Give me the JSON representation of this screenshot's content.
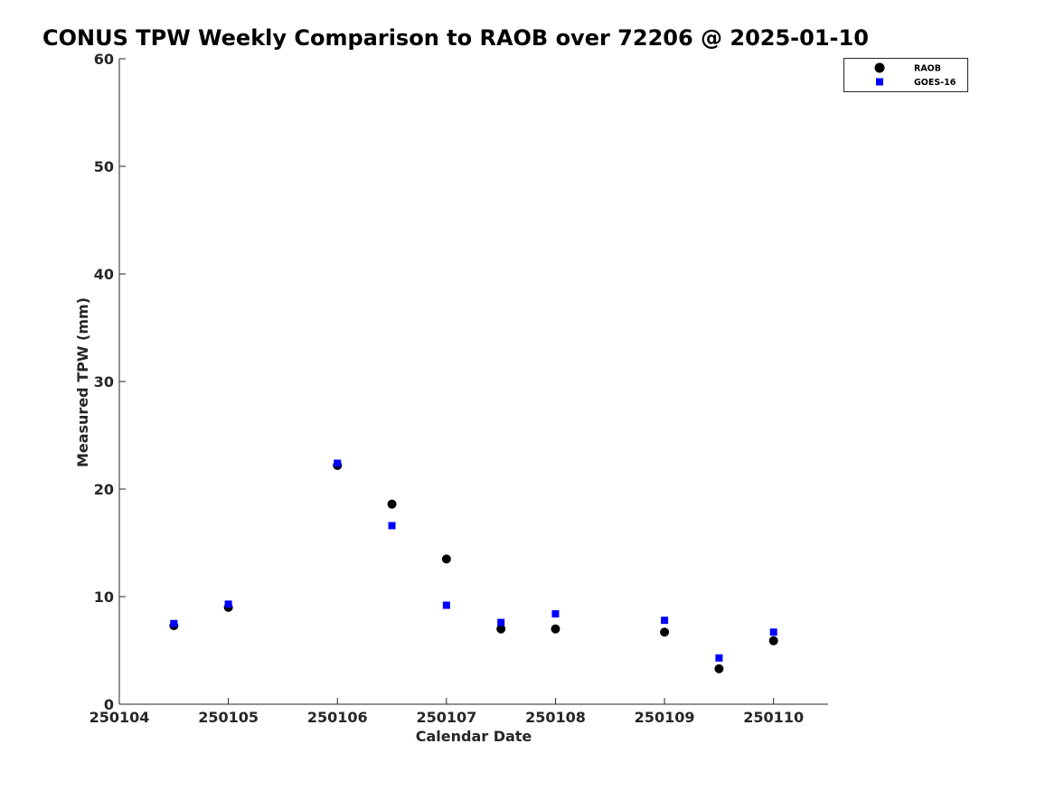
{
  "chart_data": {
    "type": "scatter",
    "title": "CONUS TPW Weekly Comparison to RAOB over 72206 @ 2025-01-10",
    "xlabel": "Calendar Date",
    "ylabel": "Measured TPW (mm)",
    "x_tick_labels": [
      "250104",
      "250105",
      "250106",
      "250107",
      "250108",
      "250109",
      "250110"
    ],
    "x_tick_values": [
      250104,
      250105,
      250106,
      250107,
      250108,
      250109,
      250110
    ],
    "xlim": [
      250104,
      250110.5
    ],
    "ylim": [
      0,
      60
    ],
    "y_ticks": [
      0,
      10,
      20,
      30,
      40,
      50,
      60
    ],
    "grid": false,
    "legend_position": "top-right",
    "series": [
      {
        "name": "RAOB",
        "marker": "circle",
        "color": "#000000",
        "points": [
          {
            "x": 250104.5,
            "y": 7.3
          },
          {
            "x": 250105.0,
            "y": 9.0
          },
          {
            "x": 250106.0,
            "y": 22.2
          },
          {
            "x": 250106.5,
            "y": 18.6
          },
          {
            "x": 250107.0,
            "y": 13.5
          },
          {
            "x": 250107.5,
            "y": 7.0
          },
          {
            "x": 250108.0,
            "y": 7.0
          },
          {
            "x": 250109.0,
            "y": 6.7
          },
          {
            "x": 250109.5,
            "y": 3.3
          },
          {
            "x": 250110.0,
            "y": 5.9
          }
        ]
      },
      {
        "name": "GOES-16",
        "marker": "square",
        "color": "#0000ff",
        "points": [
          {
            "x": 250104.5,
            "y": 7.5
          },
          {
            "x": 250105.0,
            "y": 9.3
          },
          {
            "x": 250106.0,
            "y": 22.4
          },
          {
            "x": 250106.5,
            "y": 16.6
          },
          {
            "x": 250107.0,
            "y": 9.2
          },
          {
            "x": 250107.5,
            "y": 7.6
          },
          {
            "x": 250108.0,
            "y": 8.4
          },
          {
            "x": 250109.0,
            "y": 7.8
          },
          {
            "x": 250109.5,
            "y": 4.3
          },
          {
            "x": 250110.0,
            "y": 6.7
          }
        ]
      }
    ]
  }
}
